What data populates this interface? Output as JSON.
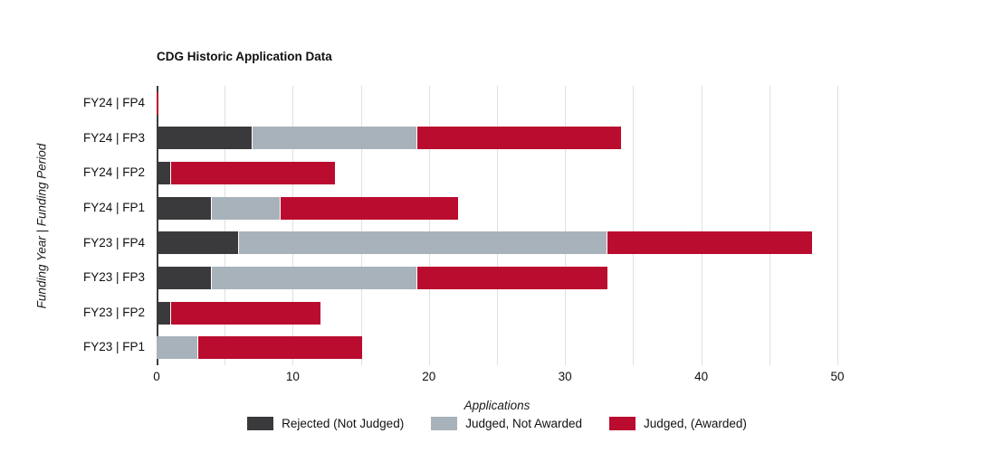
{
  "style": {
    "background": "#ffffff",
    "grid_color": "#e0e0e0",
    "axis_color": "#3c3c3c",
    "text_color": "#111111"
  },
  "chart_data": {
    "type": "bar",
    "stacked": true,
    "orientation": "horizontal",
    "title": "CDG Historic Application Data",
    "xlabel": "Applications",
    "ylabel": "Funding Year | Funding Period",
    "categories": [
      "FY24 | FP4",
      "FY24 | FP3",
      "FY24 | FP2",
      "FY24 | FP1",
      "FY23 | FP4",
      "FY23 | FP3",
      "FY23 | FP2",
      "FY23 | FP1"
    ],
    "series": [
      {
        "name": "Rejected (Not Judged)",
        "slug": "rejected-not-judged",
        "color": "#3a3a3c",
        "values": [
          0,
          7,
          1,
          4,
          6,
          4,
          1,
          0
        ]
      },
      {
        "name": "Judged, Not Awarded",
        "slug": "judged-not-awarded",
        "color": "#a8b2ba",
        "values": [
          0,
          12,
          0,
          5,
          27,
          15,
          0,
          3
        ]
      },
      {
        "name": "Judged, (Awarded)",
        "slug": "judged-awarded",
        "color": "#ba0c2f",
        "values": [
          0,
          15,
          12,
          13,
          15,
          14,
          11,
          12
        ]
      }
    ],
    "totals": [
      0,
      34,
      13,
      22,
      48,
      33,
      12,
      15
    ],
    "x_ticks": [
      0,
      10,
      20,
      30,
      40,
      50
    ],
    "xlim": [
      0,
      50
    ],
    "gridline_step": 5,
    "grid": "vertical-only",
    "legend_position": "bottom-center"
  }
}
